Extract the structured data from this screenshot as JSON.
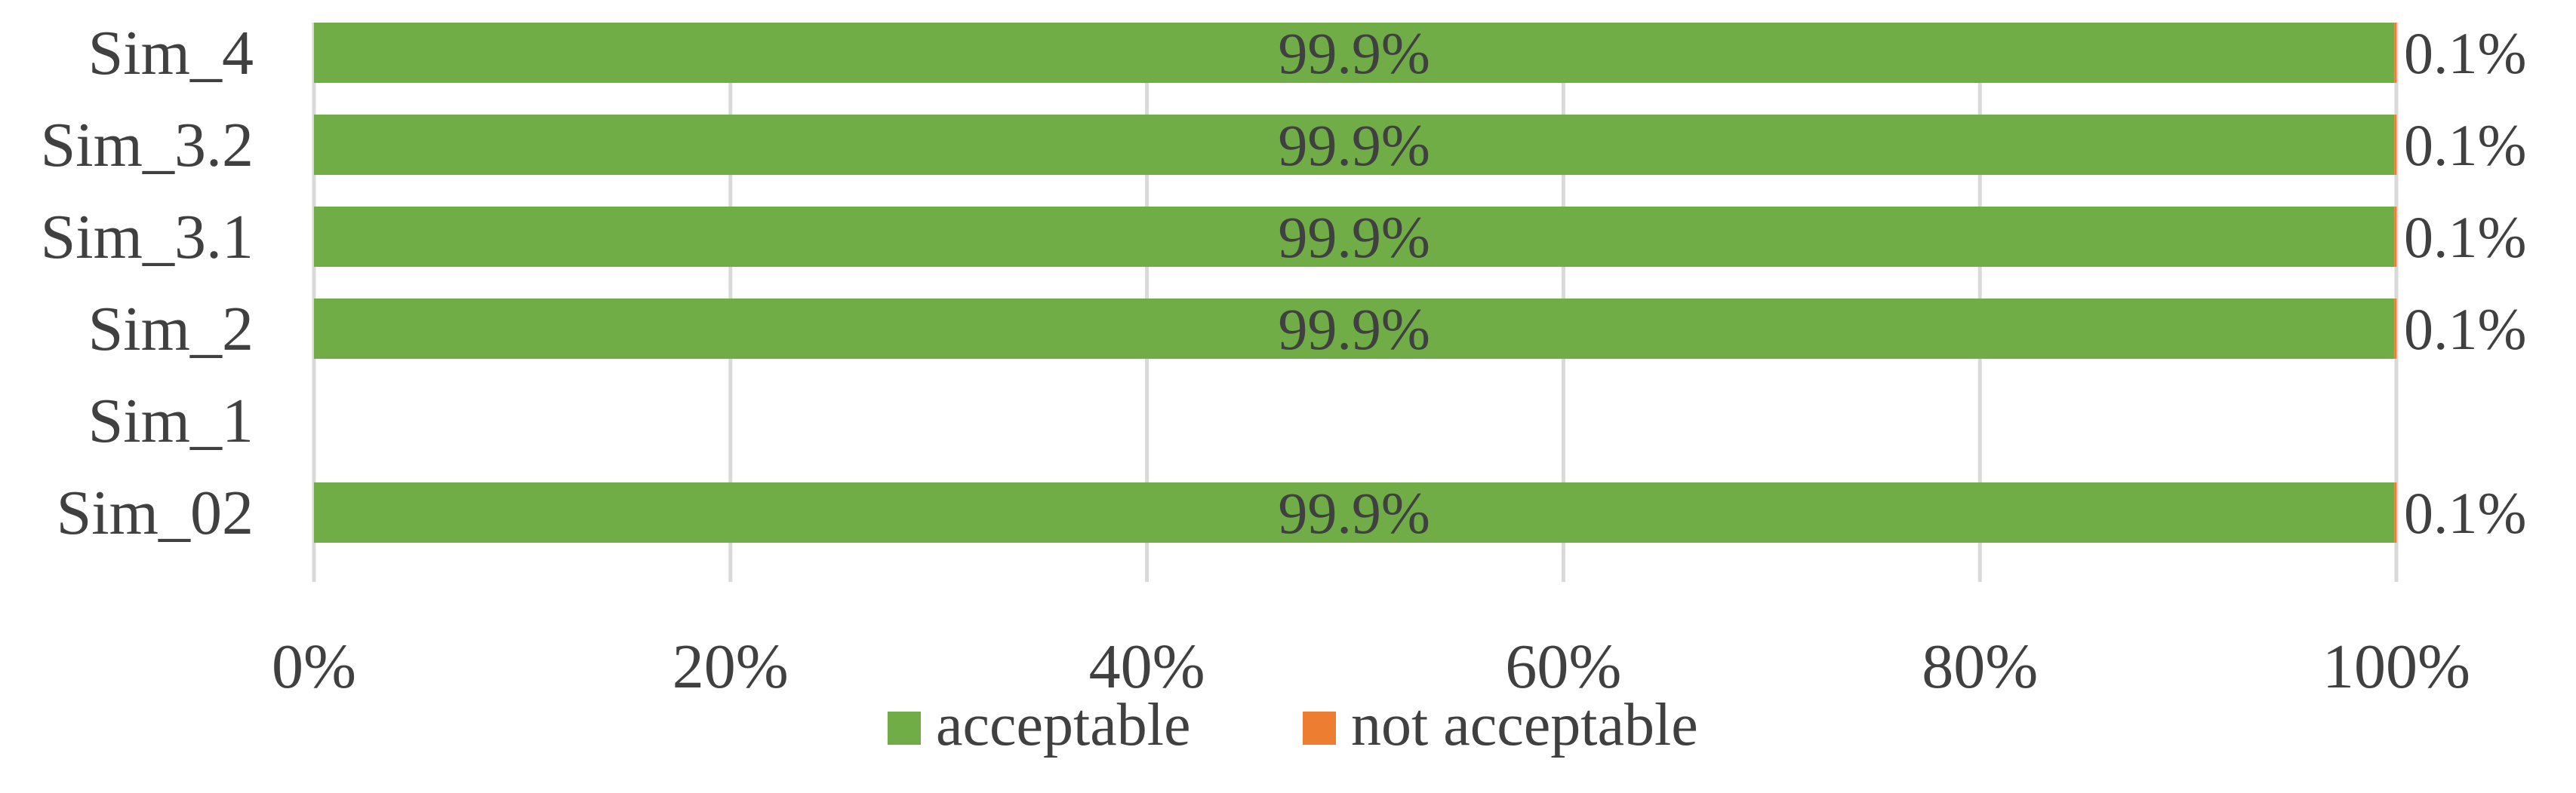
{
  "chart_data": {
    "type": "bar",
    "orientation": "horizontal",
    "stacked": true,
    "percent_stacked": true,
    "categories": [
      "Sim_4",
      "Sim_3.2",
      "Sim_3.1",
      "Sim_2",
      "Sim_1",
      "Sim_02"
    ],
    "series": [
      {
        "name": "acceptable",
        "color": "#70AD47",
        "values": [
          99.9,
          99.9,
          99.9,
          99.9,
          null,
          99.9
        ],
        "labels": [
          "99.9%",
          "99.9%",
          "99.9%",
          "99.9%",
          "",
          "99.9%"
        ]
      },
      {
        "name": "not acceptable",
        "color": "#ED7D31",
        "values": [
          0.1,
          0.1,
          0.1,
          0.1,
          null,
          0.1
        ],
        "labels": [
          "0.1%",
          "0.1%",
          "0.1%",
          "0.1%",
          "",
          "0.1%"
        ]
      }
    ],
    "xlim": [
      0,
      100
    ],
    "xticks": [
      "0%",
      "20%",
      "40%",
      "60%",
      "80%",
      "100%"
    ],
    "grid": "vertical",
    "legend": "bottom",
    "title": "",
    "xlabel": "",
    "ylabel": ""
  }
}
